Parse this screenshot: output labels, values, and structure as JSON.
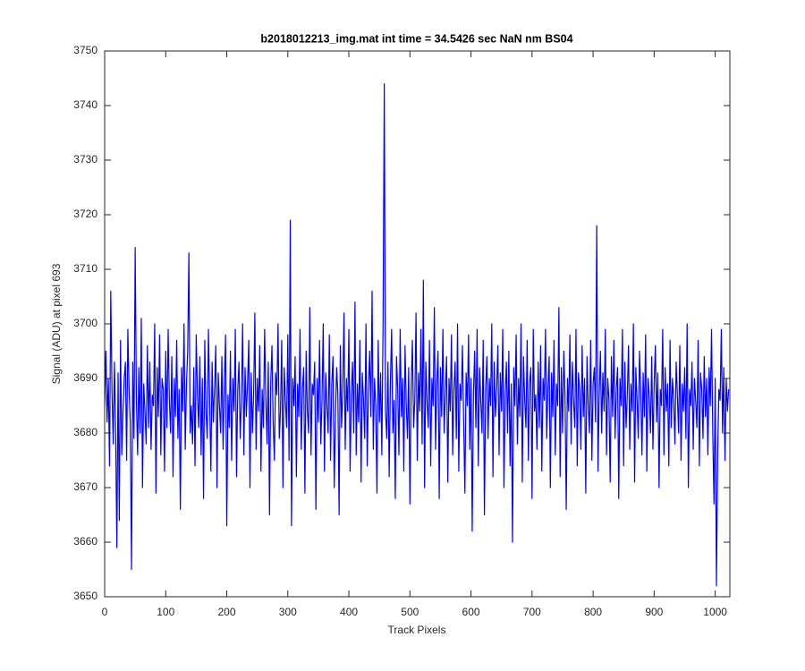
{
  "chart_data": {
    "type": "line",
    "title": "b2018012213_img.mat int time = 34.5426 sec  NaN nm BS04",
    "x_label": "Track Pixels",
    "y_label": "Signal (ADU) at pixel 693",
    "xlim": [
      0,
      1024
    ],
    "ylim": [
      3650,
      3750
    ],
    "xticks": [
      0,
      100,
      200,
      300,
      400,
      500,
      600,
      700,
      800,
      900,
      1000
    ],
    "yticks": [
      3650,
      3660,
      3670,
      3680,
      3690,
      3700,
      3710,
      3720,
      3730,
      3740,
      3750
    ],
    "grid": false,
    "x": [
      0,
      2,
      4,
      6,
      8,
      10,
      12,
      14,
      16,
      18,
      20,
      22,
      24,
      26,
      28,
      30,
      32,
      34,
      36,
      38,
      40,
      42,
      44,
      46,
      48,
      50,
      52,
      54,
      56,
      58,
      60,
      62,
      64,
      66,
      68,
      70,
      72,
      74,
      76,
      78,
      80,
      82,
      84,
      86,
      88,
      90,
      92,
      94,
      96,
      98,
      100,
      102,
      104,
      106,
      108,
      110,
      112,
      114,
      116,
      118,
      120,
      122,
      124,
      126,
      128,
      130,
      132,
      134,
      136,
      138,
      140,
      142,
      144,
      146,
      148,
      150,
      152,
      154,
      156,
      158,
      160,
      162,
      164,
      166,
      168,
      170,
      172,
      174,
      176,
      178,
      180,
      182,
      184,
      186,
      188,
      190,
      192,
      194,
      196,
      198,
      200,
      202,
      204,
      206,
      208,
      210,
      212,
      214,
      216,
      218,
      220,
      222,
      224,
      226,
      228,
      230,
      232,
      234,
      236,
      238,
      240,
      242,
      244,
      246,
      248,
      250,
      252,
      254,
      256,
      258,
      260,
      262,
      264,
      266,
      268,
      270,
      272,
      274,
      276,
      278,
      280,
      282,
      284,
      286,
      288,
      290,
      292,
      294,
      296,
      298,
      300,
      302,
      304,
      306,
      308,
      310,
      312,
      314,
      316,
      318,
      320,
      322,
      324,
      326,
      328,
      330,
      332,
      334,
      336,
      338,
      340,
      342,
      344,
      346,
      348,
      350,
      352,
      354,
      356,
      358,
      360,
      362,
      364,
      366,
      368,
      370,
      372,
      374,
      376,
      378,
      380,
      382,
      384,
      386,
      388,
      390,
      392,
      394,
      396,
      398,
      400,
      402,
      404,
      406,
      408,
      410,
      412,
      414,
      416,
      418,
      420,
      422,
      424,
      426,
      428,
      430,
      432,
      434,
      436,
      438,
      440,
      442,
      444,
      446,
      448,
      450,
      452,
      454,
      456,
      458,
      460,
      462,
      464,
      466,
      468,
      470,
      472,
      474,
      476,
      478,
      480,
      482,
      484,
      486,
      488,
      490,
      492,
      494,
      496,
      498,
      500,
      502,
      504,
      506,
      508,
      510,
      512,
      514,
      516,
      518,
      520,
      522,
      524,
      526,
      528,
      530,
      532,
      534,
      536,
      538,
      540,
      542,
      544,
      546,
      548,
      550,
      552,
      554,
      556,
      558,
      560,
      562,
      564,
      566,
      568,
      570,
      572,
      574,
      576,
      578,
      580,
      582,
      584,
      586,
      588,
      590,
      592,
      594,
      596,
      598,
      600,
      602,
      604,
      606,
      608,
      610,
      612,
      614,
      616,
      618,
      620,
      622,
      624,
      626,
      628,
      630,
      632,
      634,
      636,
      638,
      640,
      642,
      644,
      646,
      648,
      650,
      652,
      654,
      656,
      658,
      660,
      662,
      664,
      666,
      668,
      670,
      672,
      674,
      676,
      678,
      680,
      682,
      684,
      686,
      688,
      690,
      692,
      694,
      696,
      698,
      700,
      702,
      704,
      706,
      708,
      710,
      712,
      714,
      716,
      718,
      720,
      722,
      724,
      726,
      728,
      730,
      732,
      734,
      736,
      738,
      740,
      742,
      744,
      746,
      748,
      750,
      752,
      754,
      756,
      758,
      760,
      762,
      764,
      766,
      768,
      770,
      772,
      774,
      776,
      778,
      780,
      782,
      784,
      786,
      788,
      790,
      792,
      794,
      796,
      798,
      800,
      802,
      804,
      806,
      808,
      810,
      812,
      814,
      816,
      818,
      820,
      822,
      824,
      826,
      828,
      830,
      832,
      834,
      836,
      838,
      840,
      842,
      844,
      846,
      848,
      850,
      852,
      854,
      856,
      858,
      860,
      862,
      864,
      866,
      868,
      870,
      872,
      874,
      876,
      878,
      880,
      882,
      884,
      886,
      888,
      890,
      892,
      894,
      896,
      898,
      900,
      902,
      904,
      906,
      908,
      910,
      912,
      914,
      916,
      918,
      920,
      922,
      924,
      926,
      928,
      930,
      932,
      934,
      936,
      938,
      940,
      942,
      944,
      946,
      948,
      950,
      952,
      954,
      956,
      958,
      960,
      962,
      964,
      966,
      968,
      970,
      972,
      974,
      976,
      978,
      980,
      982,
      984,
      986,
      988,
      990,
      992,
      994,
      996,
      998,
      1000,
      1002,
      1004,
      1006,
      1008,
      1010,
      1012,
      1014,
      1016,
      1018,
      1020,
      1022
    ],
    "series": [
      {
        "name": "Signal",
        "color": "#0000ff",
        "values": [
          3685,
          3695,
          3682,
          3690,
          3674,
          3706,
          3688,
          3678,
          3693,
          3680,
          3659,
          3691,
          3664,
          3697,
          3676,
          3684,
          3690,
          3693,
          3675,
          3699,
          3688,
          3682,
          3655,
          3693,
          3679,
          3714,
          3686,
          3676,
          3692,
          3680,
          3701,
          3670,
          3689,
          3684,
          3678,
          3696,
          3681,
          3693,
          3677,
          3687,
          3685,
          3700,
          3669,
          3692,
          3683,
          3698,
          3676,
          3690,
          3688,
          3673,
          3695,
          3681,
          3699,
          3686,
          3680,
          3694,
          3672,
          3690,
          3683,
          3697,
          3679,
          3688,
          3666,
          3692,
          3684,
          3700,
          3677,
          3689,
          3695,
          3713,
          3680,
          3685,
          3678,
          3692,
          3674,
          3698,
          3687,
          3681,
          3694,
          3676,
          3690,
          3668,
          3697,
          3684,
          3679,
          3699,
          3686,
          3673,
          3693,
          3682,
          3688,
          3696,
          3670,
          3691,
          3685,
          3680,
          3694,
          3677,
          3689,
          3698,
          3663,
          3687,
          3681,
          3695,
          3675,
          3690,
          3684,
          3699,
          3672,
          3688,
          3693,
          3679,
          3686,
          3700,
          3676,
          3692,
          3683,
          3689,
          3697,
          3670,
          3691,
          3680,
          3687,
          3702,
          3677,
          3690,
          3684,
          3696,
          3673,
          3688,
          3681,
          3699,
          3686,
          3678,
          3693,
          3665,
          3689,
          3696,
          3682,
          3675,
          3691,
          3687,
          3700,
          3679,
          3684,
          3697,
          3670,
          3692,
          3686,
          3681,
          3698,
          3675,
          3719,
          3663,
          3690,
          3685,
          3694,
          3672,
          3689,
          3683,
          3699,
          3677,
          3688,
          3692,
          3669,
          3695,
          3684,
          3680,
          3703,
          3676,
          3689,
          3687,
          3693,
          3666,
          3690,
          3682,
          3697,
          3678,
          3686,
          3700,
          3673,
          3691,
          3685,
          3680,
          3698,
          3675,
          3689,
          3694,
          3670,
          3683,
          3692,
          3687,
          3665,
          3696,
          3681,
          3688,
          3702,
          3677,
          3690,
          3684,
          3699,
          3673,
          3687,
          3693,
          3680,
          3704,
          3676,
          3689,
          3682,
          3697,
          3671,
          3691,
          3686,
          3679,
          3700,
          3674,
          3688,
          3695,
          3683,
          3706,
          3677,
          3690,
          3685,
          3669,
          3697,
          3682,
          3691,
          3676,
          3700,
          3744,
          3684,
          3679,
          3693,
          3672,
          3689,
          3699,
          3680,
          3686,
          3668,
          3694,
          3688,
          3676,
          3699,
          3683,
          3690,
          3673,
          3696,
          3685,
          3679,
          3692,
          3667,
          3688,
          3697,
          3681,
          3686,
          3702,
          3675,
          3691,
          3684,
          3699,
          3678,
          3708,
          3670,
          3693,
          3686,
          3681,
          3697,
          3674,
          3690,
          3685,
          3703,
          3677,
          3689,
          3695,
          3668,
          3692,
          3683,
          3699,
          3680,
          3687,
          3694,
          3671,
          3690,
          3684,
          3698,
          3676,
          3688,
          3693,
          3679,
          3700,
          3673,
          3689,
          3686,
          3696,
          3682,
          3669,
          3691,
          3685,
          3698,
          3677,
          3690,
          3662,
          3687,
          3695,
          3681,
          3699,
          3674,
          3692,
          3686,
          3680,
          3697,
          3665,
          3688,
          3694,
          3679,
          3690,
          3685,
          3700,
          3672,
          3693,
          3683,
          3688,
          3696,
          3676,
          3691,
          3684,
          3699,
          3670,
          3687,
          3693,
          3680,
          3695,
          3674,
          3689,
          3660,
          3692,
          3685,
          3698,
          3678,
          3690,
          3683,
          3700,
          3671,
          3694,
          3686,
          3681,
          3697,
          3675,
          3689,
          3692,
          3668,
          3699,
          3684,
          3687,
          3677,
          3693,
          3681,
          3696,
          3673,
          3690,
          3686,
          3699,
          3679,
          3688,
          3694,
          3670,
          3691,
          3683,
          3697,
          3676,
          3689,
          3685,
          3703,
          3672,
          3692,
          3680,
          3695,
          3687,
          3666,
          3690,
          3684,
          3698,
          3678,
          3693,
          3686,
          3681,
          3699,
          3674,
          3691,
          3688,
          3677,
          3696,
          3683,
          3690,
          3669,
          3694,
          3685,
          3680,
          3697,
          3675,
          3689,
          3692,
          3682,
          3718,
          3673,
          3687,
          3695,
          3680,
          3691,
          3684,
          3699,
          3676,
          3690,
          3686,
          3671,
          3694,
          3683,
          3697,
          3679,
          3688,
          3692,
          3668,
          3690,
          3685,
          3699,
          3674,
          3693,
          3681,
          3687,
          3696,
          3677,
          3689,
          3684,
          3700,
          3671,
          3692,
          3686,
          3679,
          3695,
          3688,
          3676,
          3691,
          3683,
          3698,
          3673,
          3690,
          3687,
          3680,
          3694,
          3677,
          3689,
          3696,
          3682,
          3691,
          3670,
          3688,
          3685,
          3699,
          3676,
          3692,
          3684,
          3689,
          3674,
          3697,
          3681,
          3690,
          3686,
          3678,
          3693,
          3687,
          3680,
          3696,
          3675,
          3689,
          3684,
          3692,
          3679,
          3700,
          3670,
          3688,
          3685,
          3693,
          3677,
          3690,
          3686,
          3681,
          3697,
          3674,
          3691,
          3688,
          3679,
          3694,
          3683,
          3690,
          3676,
          3692,
          3685,
          3699,
          3680,
          3667,
          3690,
          3652,
          3676,
          3688,
          3686,
          3699,
          3680,
          3692,
          3675,
          3690,
          3684,
          3688
        ]
      }
    ]
  }
}
